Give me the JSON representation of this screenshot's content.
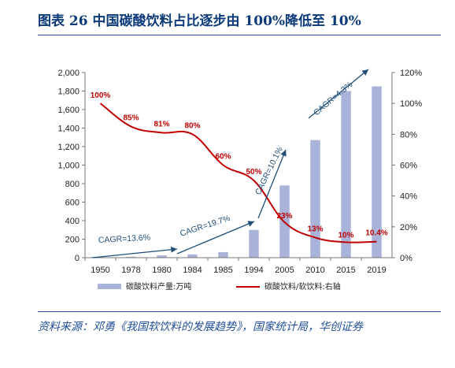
{
  "header": {
    "title": "图表 26   中国碳酸饮料占比逐步由 100%降低至 10%"
  },
  "source": {
    "text": "资料来源：邓勇《我国软饮料的发展趋势》，国家统计局，华创证券"
  },
  "chart_data": {
    "type": "bar",
    "categories": [
      "1950",
      "1978",
      "1980",
      "1984",
      "1985",
      "1994",
      "2005",
      "2010",
      "2015",
      "2019"
    ],
    "series": [
      {
        "name": "碳酸饮料产量:万吨",
        "type": "bar",
        "axis": "left",
        "color": "#a9b3d9",
        "values": [
          1,
          10,
          25,
          35,
          60,
          300,
          780,
          1270,
          1800,
          1850
        ]
      },
      {
        "name": "碳酸饮料/软饮料:右轴",
        "type": "line",
        "axis": "right",
        "color": "#c00000",
        "values": [
          100,
          85,
          81,
          80,
          60,
          50,
          23,
          13,
          10,
          10.4
        ],
        "labels": [
          "100%",
          "85%",
          "81%",
          "80%",
          "60%",
          "50%",
          "23%",
          "13%",
          "10%",
          "10.4%"
        ]
      }
    ],
    "y_left": {
      "ylim": [
        0,
        2000
      ],
      "ticks": [
        "0",
        "200",
        "400",
        "600",
        "800",
        "1,000",
        "1,200",
        "1,400",
        "1,600",
        "1,800",
        "2,000"
      ]
    },
    "y_right": {
      "ylim": [
        0,
        120
      ],
      "ticks": [
        "0%",
        "20%",
        "40%",
        "60%",
        "80%",
        "100%",
        "120%"
      ]
    },
    "annotations": [
      "CAGR=13.6%",
      "CAGR=19.7%",
      "CAGR=10.1%",
      "CAGR=4.3%"
    ],
    "legend_position": "bottom"
  }
}
